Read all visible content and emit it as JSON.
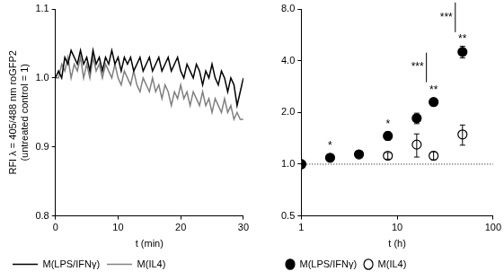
{
  "chart_data": [
    {
      "type": "line",
      "y_label": [
        "RFI λ = 405/488 nm roGFP2",
        "(untreated control = 1)"
      ],
      "x_label": "t (min)",
      "x": [
        0,
        0.5,
        1,
        1.5,
        2,
        2.5,
        3,
        3.5,
        4,
        4.5,
        5,
        5.5,
        6,
        6.5,
        7,
        7.5,
        8,
        8.5,
        9,
        9.5,
        10,
        10.5,
        11,
        11.5,
        12,
        12.5,
        13,
        13.5,
        14,
        14.5,
        15,
        15.5,
        16,
        16.5,
        17,
        17.5,
        18,
        18.5,
        19,
        19.5,
        20,
        20.5,
        21,
        21.5,
        22,
        22.5,
        23,
        23.5,
        24,
        24.5,
        25,
        25.5,
        26,
        26.5,
        27,
        27.5,
        28,
        28.5,
        29,
        29.5,
        30
      ],
      "series": [
        {
          "name": "M(LPS/IFNγ)",
          "color": "#000000",
          "values": [
            1.0,
            1.01,
            1.0,
            1.03,
            1.02,
            1.04,
            1.03,
            1.02,
            1.04,
            1.02,
            1.03,
            1.01,
            1.04,
            1.02,
            1.03,
            1.01,
            1.03,
            1.02,
            1.04,
            1.02,
            1.03,
            1.01,
            1.03,
            1.02,
            1.03,
            1.01,
            1.02,
            1.03,
            1.01,
            1.02,
            1.03,
            1.01,
            1.02,
            1.03,
            1.01,
            1.02,
            1.03,
            1.01,
            1.02,
            1.03,
            1.01,
            1.0,
            1.02,
            1.01,
            1.0,
            1.02,
            1.01,
            0.99,
            1.01,
            1.0,
            1.02,
            1.0,
            0.99,
            1.01,
            1.0,
            0.98,
            1.0,
            0.99,
            0.96,
            0.98,
            1.0
          ]
        },
        {
          "name": "M(IL4)",
          "color": "#808080",
          "values": [
            1.0,
            1.0,
            1.02,
            1.01,
            1.03,
            1.0,
            1.02,
            1.01,
            1.03,
            1.0,
            1.02,
            1.0,
            1.03,
            1.01,
            1.02,
            1.0,
            1.02,
            1.01,
            1.0,
            1.02,
            1.0,
            0.99,
            1.01,
            1.0,
            0.99,
            1.01,
            0.99,
            0.98,
            1.0,
            0.99,
            0.98,
            1.0,
            0.98,
            0.99,
            0.97,
            0.99,
            0.98,
            0.96,
            0.98,
            0.97,
            0.99,
            0.97,
            0.98,
            0.96,
            0.98,
            0.97,
            0.96,
            0.98,
            0.96,
            0.97,
            0.95,
            0.97,
            0.96,
            0.95,
            0.97,
            0.95,
            0.96,
            0.94,
            0.95,
            0.94,
            0.94
          ]
        }
      ],
      "xlim": [
        0,
        30
      ],
      "xticks": [
        0,
        10,
        20,
        30
      ],
      "ylim": [
        0.8,
        1.1
      ],
      "yticks": [
        0.8,
        0.9,
        {
          "value": 1,
          "label": "1.0"
        },
        1.1
      ],
      "grid": false,
      "legend": "bottom"
    },
    {
      "type": "scatter",
      "x_label": "t (h)",
      "log": true,
      "x": [
        1,
        2,
        4,
        8,
        16,
        24,
        48
      ],
      "series": [
        {
          "name": "M(LPS/IFNγ)",
          "color": "#000000",
          "marker": "circle",
          "values": [
            1.0,
            1.09,
            1.14,
            1.46,
            1.85,
            2.3,
            4.5
          ],
          "errors": [
            0,
            0.02,
            0.03,
            0.08,
            0.13,
            0.1,
            0.35
          ],
          "significance": [
            null,
            "*",
            null,
            "*",
            null,
            "**",
            "**"
          ]
        },
        {
          "name": "M(IL4)",
          "color": "#000000",
          "marker": "open_circle",
          "values": [
            1.0,
            null,
            null,
            1.12,
            1.3,
            1.12,
            1.49
          ],
          "errors": [
            0,
            null,
            null,
            0.05,
            0.2,
            0.06,
            0.2
          ]
        }
      ],
      "reference_y": 1,
      "comparisons": [
        {
          "x": 24,
          "label": "***"
        },
        {
          "x": 48,
          "label": "***"
        }
      ],
      "xlim": [
        1,
        100
      ],
      "xticks": [
        1,
        10,
        100
      ],
      "ylim": [
        0.5,
        8
      ],
      "yticks": [
        0.5,
        {
          "value": 1,
          "label": "1.0"
        },
        {
          "value": 2,
          "label": "2.0"
        },
        {
          "value": 4,
          "label": "4.0"
        },
        {
          "value": 8,
          "label": "8.0"
        }
      ],
      "grid": false,
      "legend": "bottom"
    }
  ]
}
